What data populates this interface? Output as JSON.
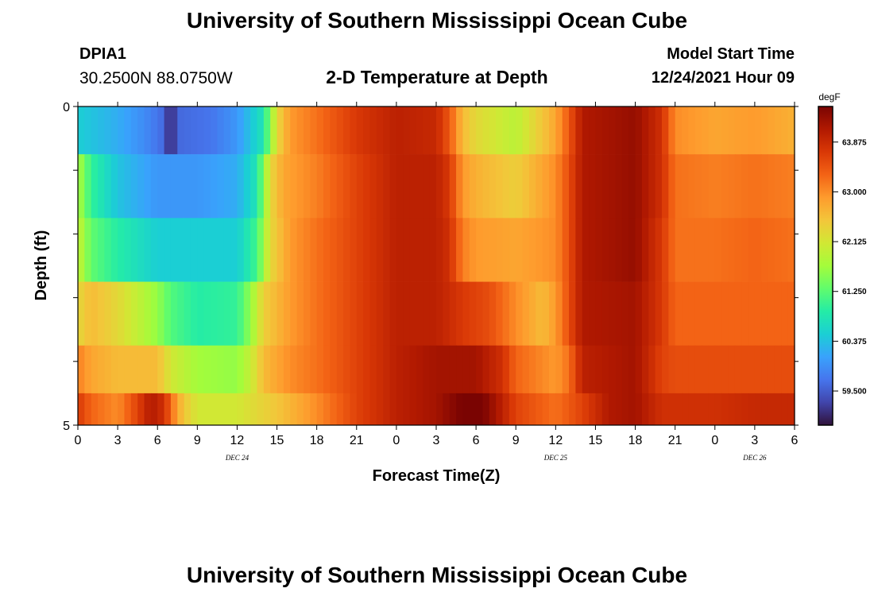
{
  "header": {
    "title": "University of Southern Mississippi Ocean Cube",
    "station_id": "DPIA1",
    "station_coords": "30.2500N  88.0750W",
    "subtitle": "2-D Temperature at Depth",
    "model_start_label": "Model Start Time",
    "model_start_value": "12/24/2021 Hour 09"
  },
  "footer": {
    "title": "University of Southern Mississippi Ocean Cube"
  },
  "chart_data": {
    "type": "heatmap",
    "title": "2-D Temperature at Depth",
    "xlabel": "Forecast Time(Z)",
    "ylabel": "Depth (ft)",
    "x_hours": [
      0,
      3,
      6,
      9,
      12,
      15,
      18,
      21,
      24,
      27,
      30,
      33,
      36,
      39,
      42,
      45,
      48,
      51,
      54
    ],
    "x_tick_labels": [
      "0",
      "3",
      "6",
      "9",
      "12",
      "15",
      "18",
      "21",
      "0",
      "3",
      "6",
      "9",
      "12",
      "15",
      "18",
      "21",
      "0",
      "3",
      "6"
    ],
    "x_range_hours": [
      0,
      54
    ],
    "day_labels": [
      {
        "label": "DEC 24",
        "hour": 12
      },
      {
        "label": "DEC 25",
        "hour": 36
      },
      {
        "label": "DEC 26",
        "hour": 51
      }
    ],
    "y_tick_labels": [
      "0",
      "5"
    ],
    "y_range": [
      0,
      5
    ],
    "depth_layers": [
      0.25,
      1.25,
      2.25,
      3.25,
      4.25,
      4.75
    ],
    "colorbar": {
      "unit": "degF",
      "range": [
        58.9,
        64.5
      ],
      "tick_values": [
        59.5,
        60.375,
        61.25,
        62.125,
        63.0,
        63.875
      ],
      "tick_labels": [
        "59.500",
        "60.375",
        "61.250",
        "62.125",
        "63.000",
        "63.875"
      ],
      "colors": [
        "#30123b",
        "#4145ab",
        "#4675ed",
        "#39a2fc",
        "#1bcfd4",
        "#24eca6",
        "#61fc6c",
        "#a4fc3b",
        "#d1e834",
        "#f3c63a",
        "#fe9b2d",
        "#f36315",
        "#d93806",
        "#b11901",
        "#7a0402"
      ]
    },
    "series": [
      {
        "values": [
          [
            0,
            60.5
          ],
          [
            3,
            60.2
          ],
          [
            5,
            59.9
          ],
          [
            6.5,
            59.6
          ],
          [
            7,
            58.9
          ],
          [
            7.5,
            59.6
          ],
          [
            10,
            59.7
          ],
          [
            12,
            60.0
          ],
          [
            14,
            60.8
          ],
          [
            15,
            62.3
          ],
          [
            16,
            62.9
          ],
          [
            18,
            63.2
          ],
          [
            21,
            63.7
          ],
          [
            24,
            64.0
          ],
          [
            27,
            63.9
          ],
          [
            28,
            63.4
          ],
          [
            29,
            62.6
          ],
          [
            30,
            62.3
          ],
          [
            33,
            61.9
          ],
          [
            34,
            62.2
          ],
          [
            36,
            62.8
          ],
          [
            37,
            63.4
          ],
          [
            38,
            64.1
          ],
          [
            42,
            64.3
          ],
          [
            44,
            63.8
          ],
          [
            45,
            63.0
          ],
          [
            48,
            62.8
          ],
          [
            51,
            62.9
          ],
          [
            54,
            62.7
          ]
        ]
      },
      {
        "values": [
          [
            0,
            61.8
          ],
          [
            1,
            61.0
          ],
          [
            3,
            60.4
          ],
          [
            6,
            60.0
          ],
          [
            9,
            60.0
          ],
          [
            12,
            60.2
          ],
          [
            13.5,
            60.8
          ],
          [
            14.5,
            62.3
          ],
          [
            15.5,
            62.8
          ],
          [
            18,
            63.1
          ],
          [
            21,
            63.6
          ],
          [
            24,
            64.0
          ],
          [
            27,
            64.0
          ],
          [
            28,
            63.7
          ],
          [
            29,
            62.9
          ],
          [
            30,
            62.7
          ],
          [
            33,
            62.4
          ],
          [
            34,
            62.6
          ],
          [
            36,
            63.0
          ],
          [
            37,
            63.5
          ],
          [
            38,
            64.1
          ],
          [
            42,
            64.3
          ],
          [
            44,
            63.8
          ],
          [
            45,
            63.2
          ],
          [
            48,
            63.1
          ],
          [
            51,
            63.2
          ],
          [
            54,
            63.1
          ]
        ]
      },
      {
        "values": [
          [
            0,
            62.0
          ],
          [
            1,
            61.3
          ],
          [
            3,
            60.9
          ],
          [
            6,
            60.5
          ],
          [
            9,
            60.5
          ],
          [
            12,
            60.5
          ],
          [
            13.5,
            61.1
          ],
          [
            14.5,
            62.3
          ],
          [
            16,
            62.9
          ],
          [
            18,
            63.2
          ],
          [
            21,
            63.6
          ],
          [
            24,
            64.0
          ],
          [
            27,
            64.0
          ],
          [
            28,
            63.8
          ],
          [
            29,
            63.1
          ],
          [
            30,
            62.9
          ],
          [
            33,
            62.8
          ],
          [
            36,
            63.0
          ],
          [
            37,
            63.5
          ],
          [
            38,
            64.1
          ],
          [
            42,
            64.3
          ],
          [
            44,
            63.7
          ],
          [
            45,
            63.2
          ],
          [
            48,
            63.2
          ],
          [
            51,
            63.3
          ],
          [
            54,
            63.2
          ]
        ]
      },
      {
        "values": [
          [
            0,
            62.3
          ],
          [
            1,
            62.6
          ],
          [
            3,
            62.3
          ],
          [
            6,
            61.6
          ],
          [
            7,
            61.2
          ],
          [
            9,
            60.9
          ],
          [
            12,
            61.0
          ],
          [
            13,
            61.6
          ],
          [
            14,
            62.4
          ],
          [
            16,
            62.9
          ],
          [
            18,
            63.2
          ],
          [
            21,
            63.6
          ],
          [
            24,
            64.0
          ],
          [
            27,
            64.0
          ],
          [
            29,
            63.7
          ],
          [
            31,
            63.5
          ],
          [
            33,
            63.0
          ],
          [
            35,
            62.6
          ],
          [
            36,
            62.9
          ],
          [
            37,
            63.5
          ],
          [
            38,
            64.1
          ],
          [
            42,
            64.2
          ],
          [
            44,
            63.7
          ],
          [
            45,
            63.3
          ],
          [
            48,
            63.3
          ],
          [
            51,
            63.3
          ],
          [
            54,
            63.3
          ]
        ]
      },
      {
        "values": [
          [
            0,
            63.1
          ],
          [
            1,
            62.8
          ],
          [
            3,
            62.6
          ],
          [
            6,
            62.6
          ],
          [
            7,
            62.1
          ],
          [
            9,
            61.7
          ],
          [
            12,
            61.6
          ],
          [
            13,
            62.0
          ],
          [
            14,
            62.6
          ],
          [
            16,
            63.0
          ],
          [
            18,
            63.2
          ],
          [
            21,
            63.6
          ],
          [
            24,
            64.0
          ],
          [
            27,
            64.2
          ],
          [
            30,
            64.2
          ],
          [
            32,
            63.8
          ],
          [
            33,
            63.3
          ],
          [
            36,
            62.9
          ],
          [
            37,
            63.2
          ],
          [
            38,
            64.0
          ],
          [
            42,
            64.2
          ],
          [
            44,
            63.6
          ],
          [
            45,
            63.5
          ],
          [
            48,
            63.5
          ],
          [
            51,
            63.5
          ],
          [
            54,
            63.5
          ]
        ]
      },
      {
        "values": [
          [
            0,
            63.7
          ],
          [
            1,
            63.3
          ],
          [
            3,
            63.0
          ],
          [
            4.5,
            63.6
          ],
          [
            5.5,
            64.1
          ],
          [
            6.5,
            63.8
          ],
          [
            7.5,
            62.8
          ],
          [
            8,
            62.5
          ],
          [
            9,
            62.1
          ],
          [
            12,
            62.1
          ],
          [
            15,
            62.5
          ],
          [
            18,
            63.0
          ],
          [
            21,
            63.6
          ],
          [
            24,
            64.0
          ],
          [
            27,
            64.2
          ],
          [
            29.5,
            64.6
          ],
          [
            30,
            64.8
          ],
          [
            30.5,
            64.5
          ],
          [
            32,
            64.0
          ],
          [
            33,
            63.6
          ],
          [
            36,
            63.2
          ],
          [
            38,
            63.6
          ],
          [
            40,
            64.1
          ],
          [
            42,
            64.2
          ],
          [
            44,
            63.8
          ],
          [
            45,
            63.8
          ],
          [
            48,
            63.8
          ],
          [
            51,
            63.9
          ],
          [
            54,
            63.9
          ]
        ]
      }
    ]
  }
}
